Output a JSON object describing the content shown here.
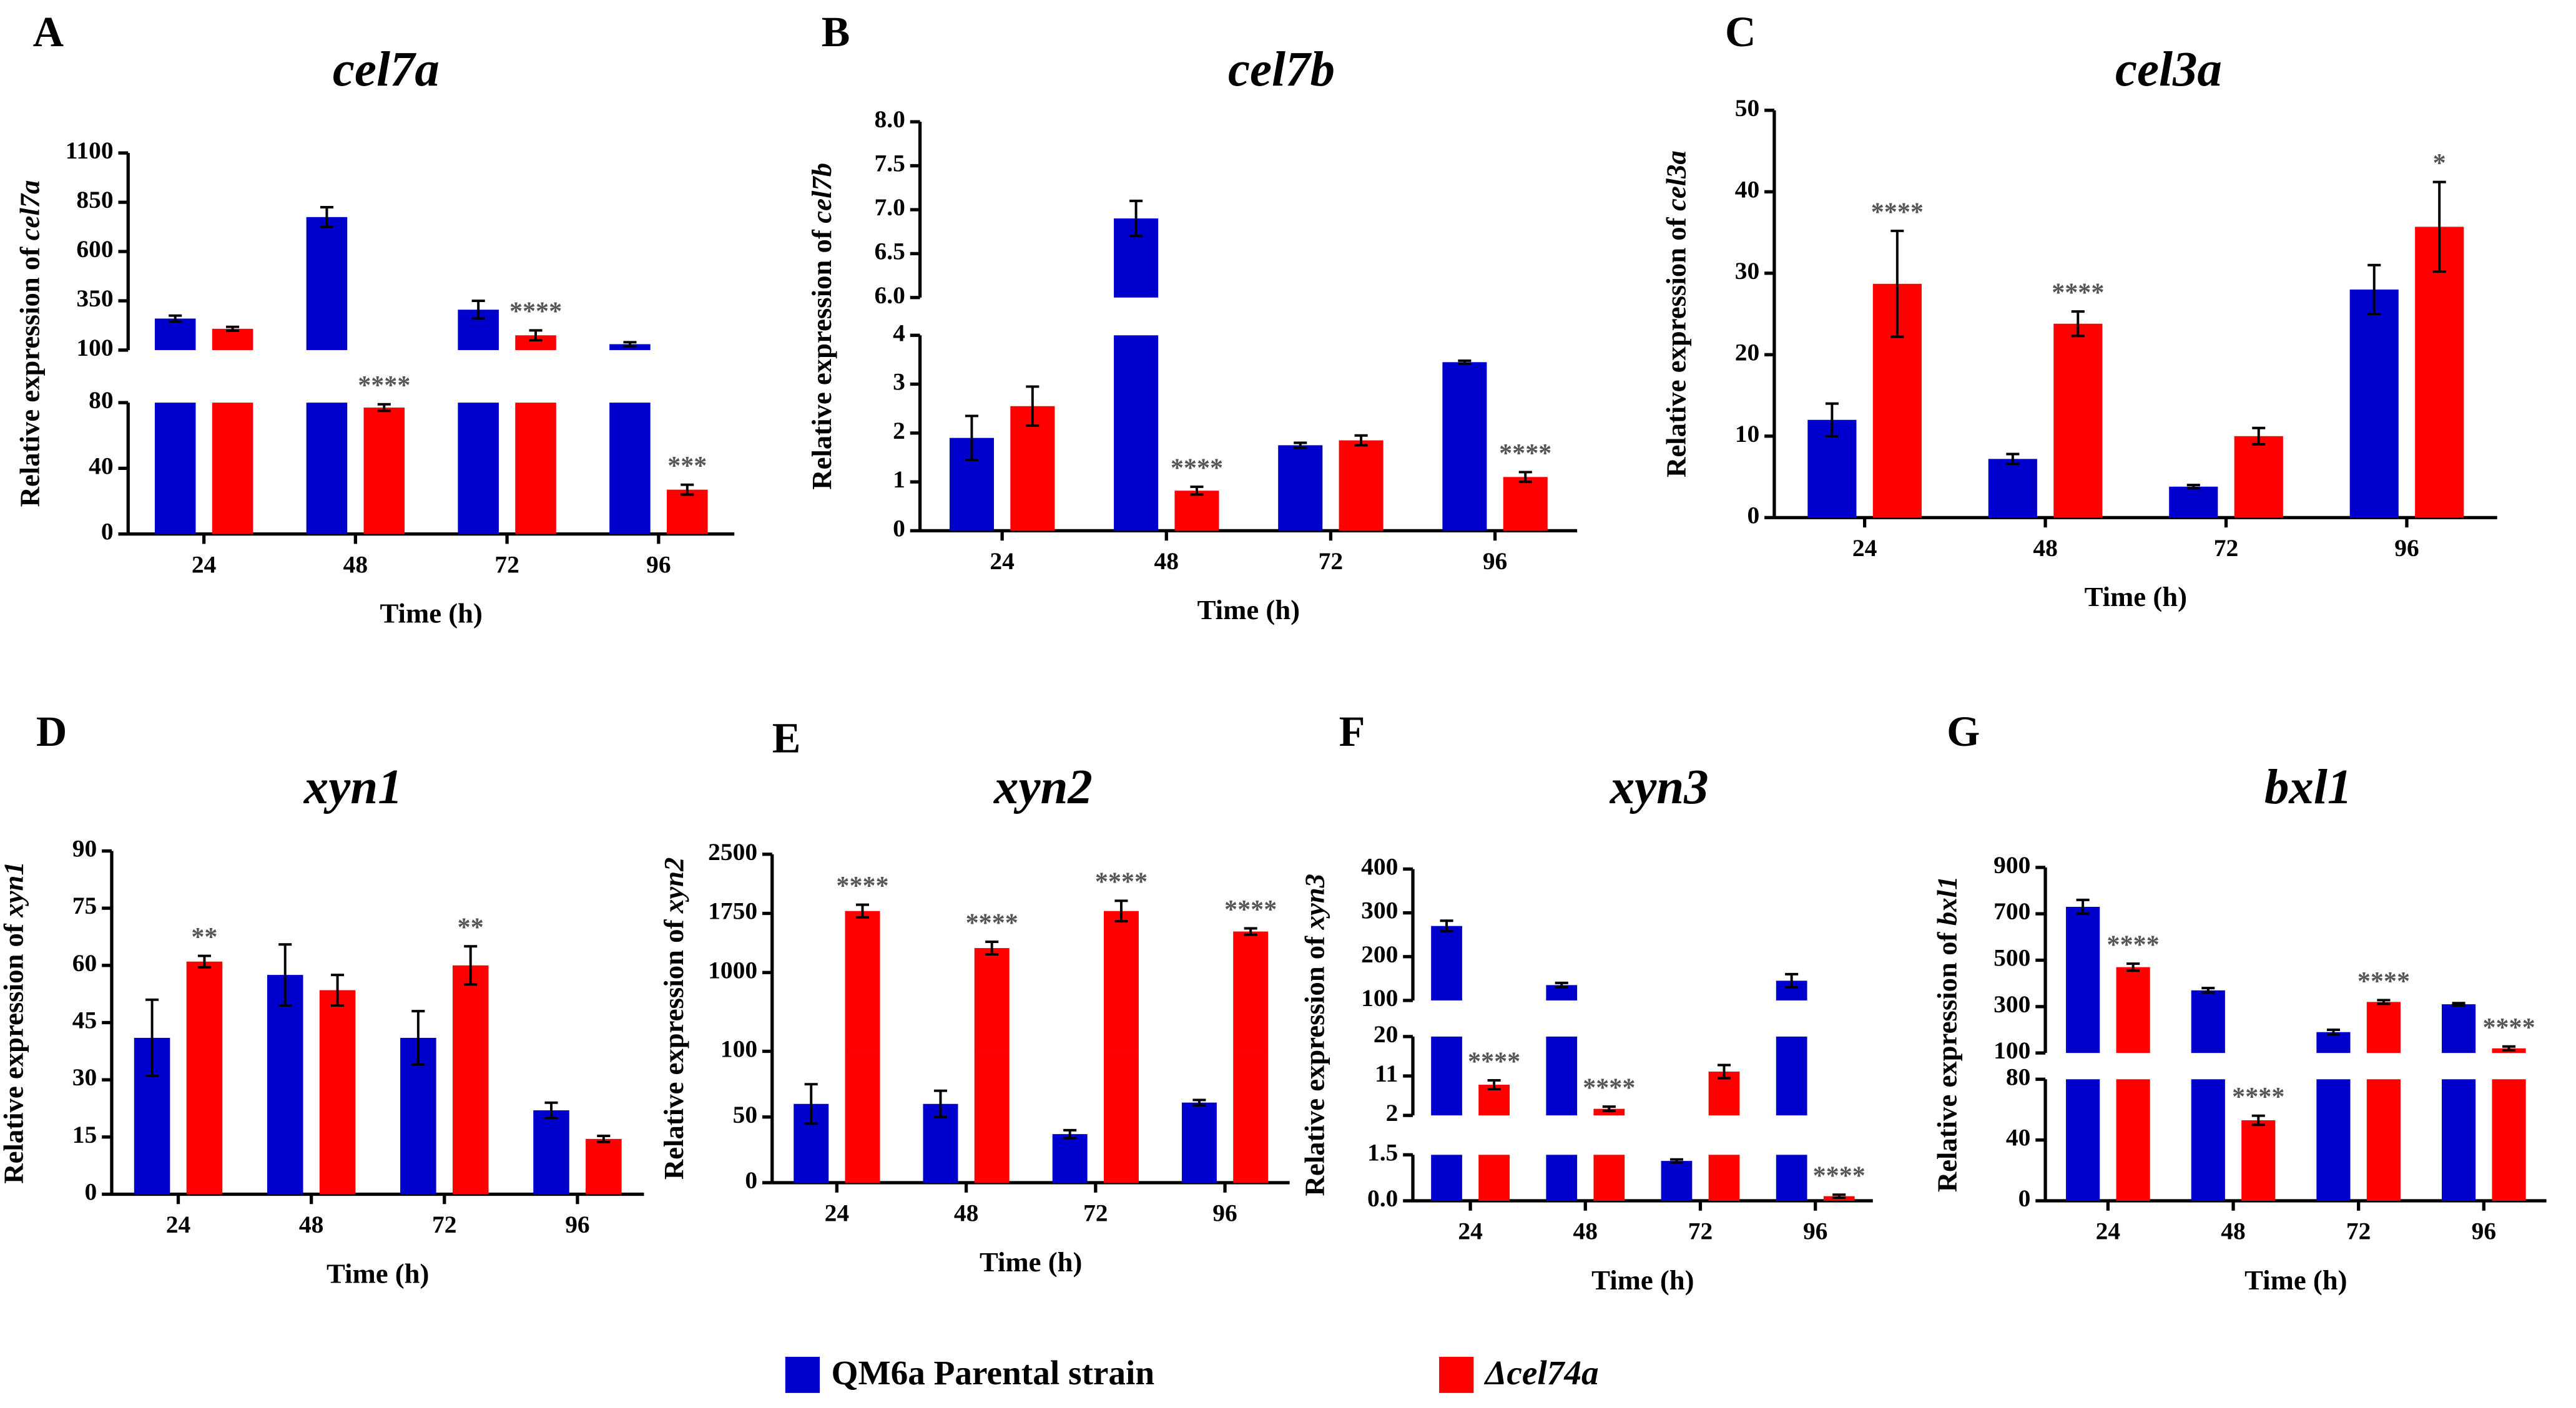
{
  "legend": [
    {
      "name": "QM6a Parental strain",
      "color": "#0000cc"
    },
    {
      "name": "Δcel74a",
      "color": "#ff0000"
    }
  ],
  "chart_data": [
    {
      "type": "bar",
      "panel": "A",
      "title": "cel7a",
      "ylabel": "Relative expression of",
      "xlabel": "Time (h)",
      "categories": [
        "24",
        "48",
        "72",
        "96"
      ],
      "segments": [
        {
          "ylim": [
            0,
            80
          ],
          "yticks": [
            0,
            40,
            80
          ]
        },
        {
          "ylim": [
            100,
            1100
          ],
          "yticks": [
            100,
            350,
            600,
            850,
            1100
          ]
        }
      ],
      "series": [
        {
          "color": "#0000cc",
          "values": [
            260,
            775,
            305,
            130
          ],
          "errors": [
            15,
            50,
            45,
            10
          ],
          "significance": [
            null,
            null,
            null,
            null
          ]
        },
        {
          "color": "#ff0000",
          "values": [
            208,
            77,
            175,
            27
          ],
          "errors": [
            10,
            2,
            25,
            3
          ],
          "significance": [
            null,
            "****",
            "****",
            "***"
          ]
        }
      ]
    },
    {
      "type": "bar",
      "panel": "B",
      "title": "cel7b",
      "ylabel": "Relative expression of",
      "xlabel": "Time (h)",
      "categories": [
        "24",
        "48",
        "72",
        "96"
      ],
      "segments": [
        {
          "ylim": [
            0,
            4
          ],
          "yticks": [
            0,
            1,
            2,
            3,
            4
          ]
        },
        {
          "ylim": [
            6,
            8
          ],
          "yticks": [
            {
              "value": 6,
              "label": "6.0"
            },
            6.5,
            {
              "value": 7,
              "label": "7.0"
            },
            7.5,
            {
              "value": 8,
              "label": "8.0"
            }
          ]
        }
      ],
      "series": [
        {
          "color": "#0000cc",
          "values": [
            1.9,
            6.9,
            1.75,
            3.45
          ],
          "errors": [
            0.45,
            0.2,
            0.05,
            0.03
          ],
          "significance": [
            null,
            null,
            null,
            null
          ]
        },
        {
          "color": "#ff0000",
          "values": [
            2.55,
            0.82,
            1.85,
            1.1
          ],
          "errors": [
            0.4,
            0.08,
            0.1,
            0.1
          ],
          "significance": [
            null,
            "****",
            null,
            "****"
          ]
        }
      ]
    },
    {
      "type": "bar",
      "panel": "C",
      "title": "cel3a",
      "ylabel": "Relative expression of",
      "xlabel": "Time (h)",
      "categories": [
        "24",
        "48",
        "72",
        "96"
      ],
      "ylim": [
        0,
        50
      ],
      "yticks": [
        0,
        10,
        20,
        30,
        40,
        50
      ],
      "series": [
        {
          "color": "#0000cc",
          "values": [
            12,
            7.2,
            3.8,
            28
          ],
          "errors": [
            2,
            0.6,
            0.2,
            3
          ],
          "significance": [
            null,
            null,
            null,
            null
          ]
        },
        {
          "color": "#ff0000",
          "values": [
            28.7,
            23.8,
            10,
            35.7
          ],
          "errors": [
            6.5,
            1.5,
            1,
            5.5
          ],
          "significance": [
            "****",
            "****",
            null,
            "*"
          ]
        }
      ]
    },
    {
      "type": "bar",
      "panel": "D",
      "title": "xyn1",
      "ylabel": "Relative expression of",
      "xlabel": "Time (h)",
      "categories": [
        "24",
        "48",
        "72",
        "96"
      ],
      "ylim": [
        0,
        90
      ],
      "yticks": [
        0,
        15,
        30,
        45,
        60,
        75,
        90
      ],
      "series": [
        {
          "color": "#0000cc",
          "values": [
            41,
            57.5,
            41,
            22
          ],
          "errors": [
            10,
            8,
            7,
            2
          ],
          "significance": [
            null,
            null,
            null,
            null
          ]
        },
        {
          "color": "#ff0000",
          "values": [
            61,
            53.5,
            60,
            14.5
          ],
          "errors": [
            1.5,
            4,
            5,
            0.8
          ],
          "significance": [
            "**",
            null,
            "**",
            null
          ]
        }
      ]
    },
    {
      "type": "bar",
      "panel": "E",
      "title": "xyn2",
      "ylabel": "Relative expression of",
      "xlabel": "Time (h)",
      "categories": [
        "24",
        "48",
        "72",
        "96"
      ],
      "segments": [
        {
          "ylim": [
            0,
            100
          ],
          "yticks": [
            0,
            50,
            100
          ]
        },
        {
          "ylim": [
            0,
            2500
          ],
          "yticks": [
            1000,
            1750,
            2500
          ]
        }
      ],
      "series": [
        {
          "color": "#0000cc",
          "values": [
            60,
            60,
            37,
            61
          ],
          "errors": [
            15,
            10,
            3,
            2
          ],
          "significance": [
            null,
            null,
            null,
            null
          ]
        },
        {
          "color": "#ff0000",
          "values": [
            1780,
            1310,
            1780,
            1520
          ],
          "errors": [
            80,
            80,
            130,
            40
          ],
          "significance": [
            "****",
            "****",
            "****",
            "****"
          ]
        }
      ]
    },
    {
      "type": "bar",
      "panel": "F",
      "title": "xyn3",
      "ylabel": "Relative expression of",
      "xlabel": "Time (h)",
      "categories": [
        "24",
        "48",
        "72",
        "96"
      ],
      "segments": [
        {
          "ylim": [
            0,
            1.5
          ],
          "yticks": [
            {
              "value": 0,
              "label": "0.0"
            },
            1.5
          ]
        },
        {
          "ylim": [
            2,
            20
          ],
          "yticks": [
            2,
            11,
            20
          ]
        },
        {
          "ylim": [
            100,
            400
          ],
          "yticks": [
            100,
            200,
            300,
            400
          ]
        }
      ],
      "series": [
        {
          "color": "#0000cc",
          "values": [
            270,
            135,
            1.3,
            145
          ],
          "errors": [
            12,
            5,
            0.05,
            15
          ],
          "significance": [
            null,
            null,
            null,
            null
          ]
        },
        {
          "color": "#ff0000",
          "values": [
            9,
            3.5,
            12,
            0.15
          ],
          "errors": [
            1,
            0.5,
            1.5,
            0.05
          ],
          "significance": [
            "****",
            "****",
            null,
            "****"
          ]
        }
      ]
    },
    {
      "type": "bar",
      "panel": "G",
      "title": "bxl1",
      "ylabel": "Relative expression of",
      "xlabel": "Time (h)",
      "categories": [
        "24",
        "48",
        "72",
        "96"
      ],
      "segments": [
        {
          "ylim": [
            0,
            80
          ],
          "yticks": [
            0,
            40,
            80
          ]
        },
        {
          "ylim": [
            100,
            900
          ],
          "yticks": [
            100,
            300,
            500,
            700,
            900
          ]
        }
      ],
      "series": [
        {
          "color": "#0000cc",
          "values": [
            730,
            370,
            190,
            310
          ],
          "errors": [
            30,
            10,
            10,
            5
          ],
          "significance": [
            null,
            null,
            null,
            null
          ]
        },
        {
          "color": "#ff0000",
          "values": [
            470,
            53,
            320,
            120
          ],
          "errors": [
            15,
            3,
            8,
            8
          ],
          "significance": [
            "****",
            "****",
            "****",
            "****"
          ]
        }
      ]
    }
  ]
}
